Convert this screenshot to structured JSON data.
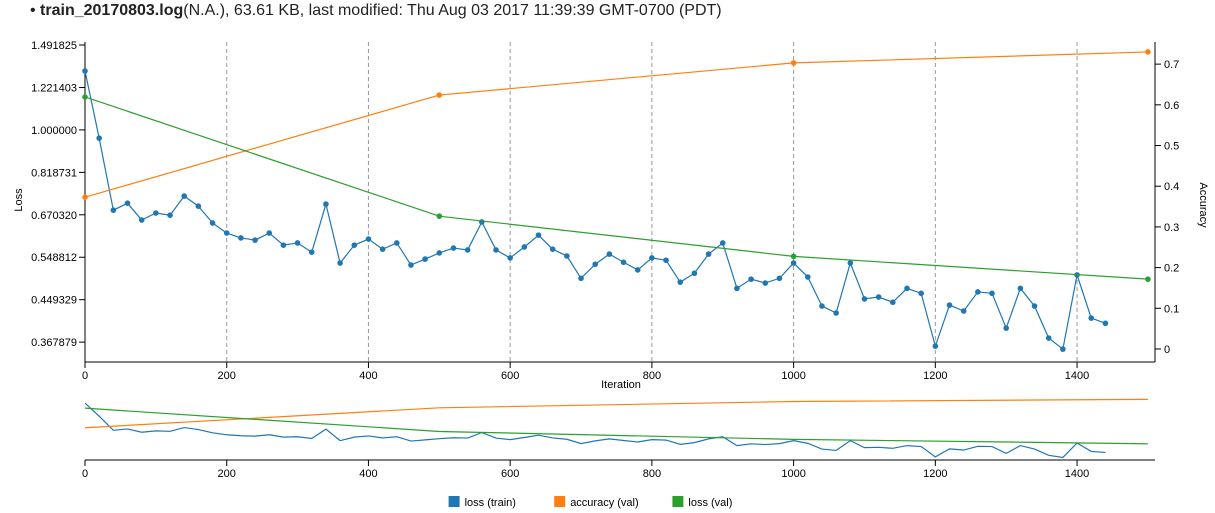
{
  "header": {
    "file_name": "train_20170803.log",
    "file_info": "(N.A.), 63.61 KB, last modified: Thu Aug 03 2017 11:39:39 GMT-0700 (PDT)"
  },
  "chart_data": {
    "type": "line",
    "xlabel": "Iteration",
    "ylabel": "Loss",
    "y2label": "Accuracy",
    "yscale": "log",
    "grid": "x",
    "xlim": [
      0,
      1510
    ],
    "xticks": [
      0,
      200,
      400,
      600,
      800,
      1000,
      1200,
      1400
    ],
    "ylim": [
      0.335,
      1.491825
    ],
    "yticks": [
      0.367879,
      0.449329,
      0.548812,
      {
        "value": 0.67032,
        "label": "0.670320"
      },
      0.818731,
      {
        "value": 1,
        "label": "1.000000"
      },
      1.221403,
      1.491825
    ],
    "y2lim": [
      -0.032,
      0.747
    ],
    "y2ticks": [
      0,
      0.1,
      0.2,
      0.3,
      0.4,
      0.5,
      0.6,
      0.7
    ],
    "series": [
      {
        "name": "loss (train)",
        "color": "#1f77b4",
        "axis": "y",
        "x": [
          0,
          20,
          40,
          60,
          80,
          100,
          120,
          140,
          160,
          180,
          200,
          220,
          240,
          260,
          280,
          300,
          320,
          340,
          360,
          380,
          400,
          420,
          440,
          460,
          480,
          500,
          520,
          540,
          560,
          580,
          600,
          620,
          640,
          660,
          680,
          700,
          720,
          740,
          760,
          780,
          800,
          820,
          840,
          860,
          880,
          900,
          920,
          940,
          960,
          980,
          1000,
          1020,
          1040,
          1060,
          1080,
          1100,
          1120,
          1140,
          1160,
          1180,
          1200,
          1220,
          1240,
          1260,
          1280,
          1300,
          1320,
          1340,
          1360,
          1380,
          1400,
          1420,
          1440
        ],
        "values": [
          1.32,
          0.962,
          0.685,
          0.708,
          0.654,
          0.676,
          0.669,
          0.732,
          0.698,
          0.645,
          0.615,
          0.601,
          0.595,
          0.615,
          0.581,
          0.587,
          0.562,
          0.705,
          0.534,
          0.581,
          0.598,
          0.57,
          0.587,
          0.529,
          0.544,
          0.56,
          0.573,
          0.568,
          0.648,
          0.568,
          0.547,
          0.576,
          0.609,
          0.57,
          0.552,
          0.497,
          0.531,
          0.557,
          0.536,
          0.517,
          0.547,
          0.541,
          0.488,
          0.509,
          0.557,
          0.587,
          0.474,
          0.495,
          0.486,
          0.497,
          0.534,
          0.5,
          0.436,
          0.422,
          0.534,
          0.451,
          0.455,
          0.444,
          0.474,
          0.463,
          0.361,
          0.438,
          0.426,
          0.466,
          0.463,
          0.393,
          0.474,
          0.436,
          0.375,
          0.356,
          0.505,
          0.412,
          0.402
        ]
      },
      {
        "name": "accuracy (val)",
        "color": "#ff7f0e",
        "axis": "y2",
        "x": [
          0,
          500,
          1000,
          1500
        ],
        "values": [
          0.373,
          0.624,
          0.703,
          0.73
        ]
      },
      {
        "name": "loss (val)",
        "color": "#2ca02c",
        "axis": "y",
        "x": [
          0,
          500,
          1000,
          1500
        ],
        "values": [
          1.168,
          0.666,
          0.551,
          0.495
        ]
      }
    ]
  }
}
